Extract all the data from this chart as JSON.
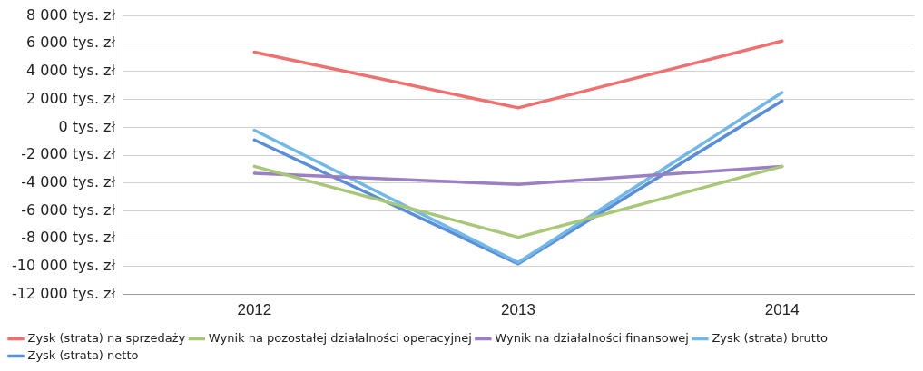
{
  "chart_data": {
    "type": "line",
    "categories": [
      "2012",
      "2013",
      "2014"
    ],
    "ylim": [
      -12000,
      8000
    ],
    "yticks": [
      {
        "value": -12000,
        "label": "-12 000 tys. zł"
      },
      {
        "value": -10000,
        "label": "-10 000 tys. zł"
      },
      {
        "value": -8000,
        "label": "-8 000 tys. zł"
      },
      {
        "value": -6000,
        "label": "-6 000 tys. zł"
      },
      {
        "value": -4000,
        "label": "-4 000 tys. zł"
      },
      {
        "value": -2000,
        "label": "-2 000 tys. zł"
      },
      {
        "value": 0,
        "label": "0 tys. zł"
      },
      {
        "value": 2000,
        "label": "2 000 tys. zł"
      },
      {
        "value": 4000,
        "label": "4 000 tys. zł"
      },
      {
        "value": 6000,
        "label": "6 000 tys. zł"
      },
      {
        "value": 8000,
        "label": "8 000 tys. zł"
      }
    ],
    "grid": "y",
    "legend": "bottom",
    "marker": "none",
    "line_style": "solid",
    "series": [
      {
        "name": "Zysk (strata) na sprzedaży",
        "color": "#f07070",
        "values": [
          5400,
          1400,
          6200
        ]
      },
      {
        "name": "Wynik na pozostałej działalności operacyjnej",
        "color": "#a8c878",
        "values": [
          -2800,
          -7900,
          -2800
        ]
      },
      {
        "name": "Wynik na działalności finansowej",
        "color": "#9b7fc4",
        "values": [
          -3300,
          -4100,
          -2800
        ]
      },
      {
        "name": "Zysk (strata) brutto",
        "color": "#70b8e8",
        "values": [
          -200,
          -9700,
          2500
        ]
      },
      {
        "name": "Zysk (strata) netto",
        "color": "#5b8ed8",
        "values": [
          -900,
          -9800,
          1900
        ]
      }
    ]
  }
}
